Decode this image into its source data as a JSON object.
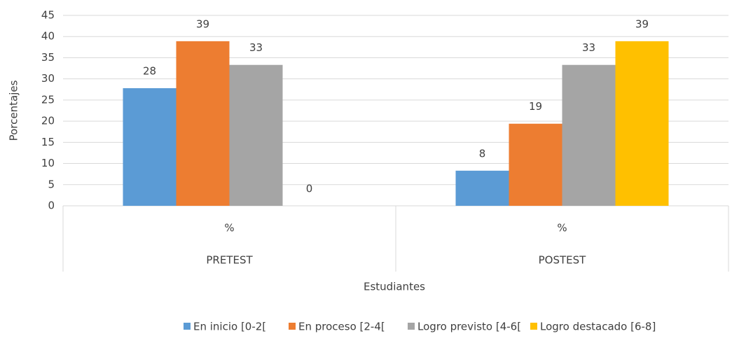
{
  "chart_data": {
    "type": "bar",
    "y_label": "Porcentajes",
    "x_label": "Estudiantes",
    "categories": [
      "%",
      "%"
    ],
    "groups": [
      "PRETEST",
      "POSTEST"
    ],
    "series": [
      {
        "name": "En inicio [0-2[",
        "color": "#5b9bd5",
        "values": [
          27.8,
          8.3
        ],
        "value_labels": [
          "28",
          "8"
        ]
      },
      {
        "name": "En proceso [2-4[",
        "color": "#ed7d31",
        "values": [
          38.9,
          19.4
        ],
        "value_labels": [
          "39",
          "19"
        ]
      },
      {
        "name": "Logro previsto [4-6[",
        "color": "#a5a5a5",
        "values": [
          33.3,
          33.3
        ],
        "value_labels": [
          "33",
          "33"
        ]
      },
      {
        "name": "Logro destacado [6-8]",
        "color": "#ffc000",
        "values": [
          0,
          38.9
        ],
        "value_labels": [
          "0",
          "39"
        ]
      }
    ],
    "ylim": [
      0,
      45
    ],
    "yticks": [
      0,
      5,
      10,
      15,
      20,
      25,
      30,
      35,
      40,
      45
    ],
    "grid": true,
    "legend": "bottom"
  }
}
